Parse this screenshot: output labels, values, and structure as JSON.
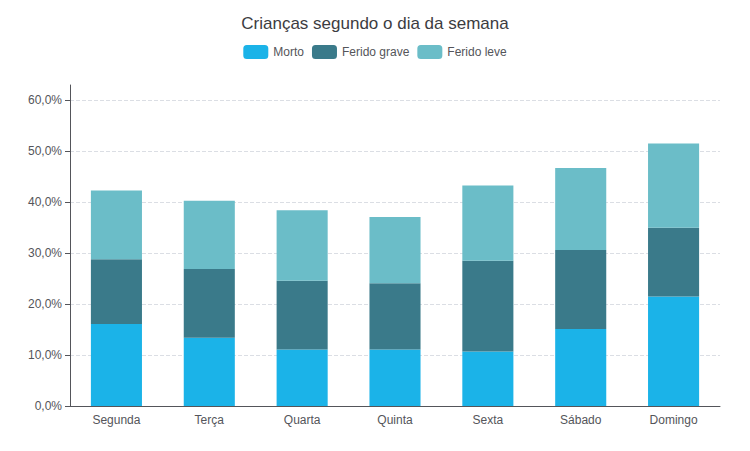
{
  "chart_data": {
    "type": "bar",
    "title": "Crianças segundo o dia da semana",
    "categories": [
      "Segunda",
      "Terça",
      "Quarta",
      "Quinta",
      "Sexta",
      "Sábado",
      "Domingo"
    ],
    "series": [
      {
        "name": "Morto",
        "color": "#1BB3E8",
        "values": [
          0.161,
          0.134,
          0.111,
          0.111,
          0.107,
          0.151,
          0.215
        ]
      },
      {
        "name": "Ferido grave",
        "color": "#3A7A8A",
        "values": [
          0.127,
          0.135,
          0.135,
          0.13,
          0.178,
          0.155,
          0.135
        ]
      },
      {
        "name": "Ferido leve",
        "color": "#6BBDC8",
        "values": [
          0.135,
          0.134,
          0.138,
          0.13,
          0.148,
          0.161,
          0.165
        ]
      }
    ],
    "stacked": true,
    "ylim": [
      0.0,
      0.63
    ],
    "yticks": [
      {
        "value": 0.0,
        "label": "0,0%"
      },
      {
        "value": 0.1,
        "label": "10,0%"
      },
      {
        "value": 0.2,
        "label": "20,0%"
      },
      {
        "value": 0.3,
        "label": "30,0%"
      },
      {
        "value": 0.4,
        "label": "40,0%"
      },
      {
        "value": 0.5,
        "label": "50,0%"
      },
      {
        "value": 0.6,
        "label": "60,0%"
      }
    ],
    "grid": true,
    "legend": "top"
  }
}
